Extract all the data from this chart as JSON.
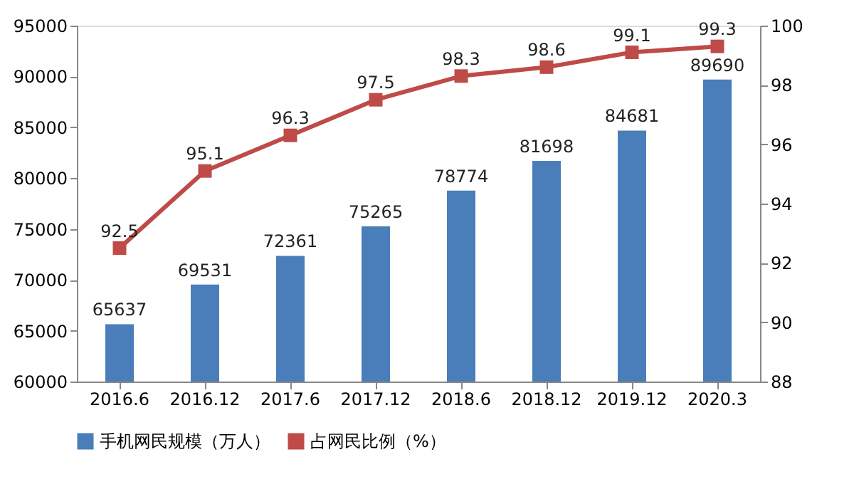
{
  "chart_data": {
    "type": "bar",
    "categories": [
      "2016.6",
      "2016.12",
      "2017.6",
      "2017.12",
      "2018.6",
      "2018.12",
      "2019.12",
      "2020.3"
    ],
    "series": [
      {
        "name": "手机网民规模（万人）",
        "color": "#4a7ebb",
        "values": [
          65637,
          69531,
          72361,
          75265,
          78774,
          81698,
          84681,
          89690
        ]
      },
      {
        "name": "占网民比例（%）",
        "type": "line",
        "axis": "y2",
        "color": "#be4b48",
        "marker": "square",
        "values": [
          92.5,
          95.1,
          96.3,
          97.5,
          98.3,
          98.6,
          99.1,
          99.3
        ]
      }
    ],
    "ylim": [
      60000,
      95000
    ],
    "yticks": [
      60000,
      65000,
      70000,
      75000,
      80000,
      85000,
      90000,
      95000
    ],
    "y2lim": [
      88,
      100
    ],
    "y2ticks": [
      88,
      90,
      92,
      94,
      96,
      98,
      100
    ],
    "data_labels": true,
    "grid": false,
    "legend": "bottom"
  }
}
